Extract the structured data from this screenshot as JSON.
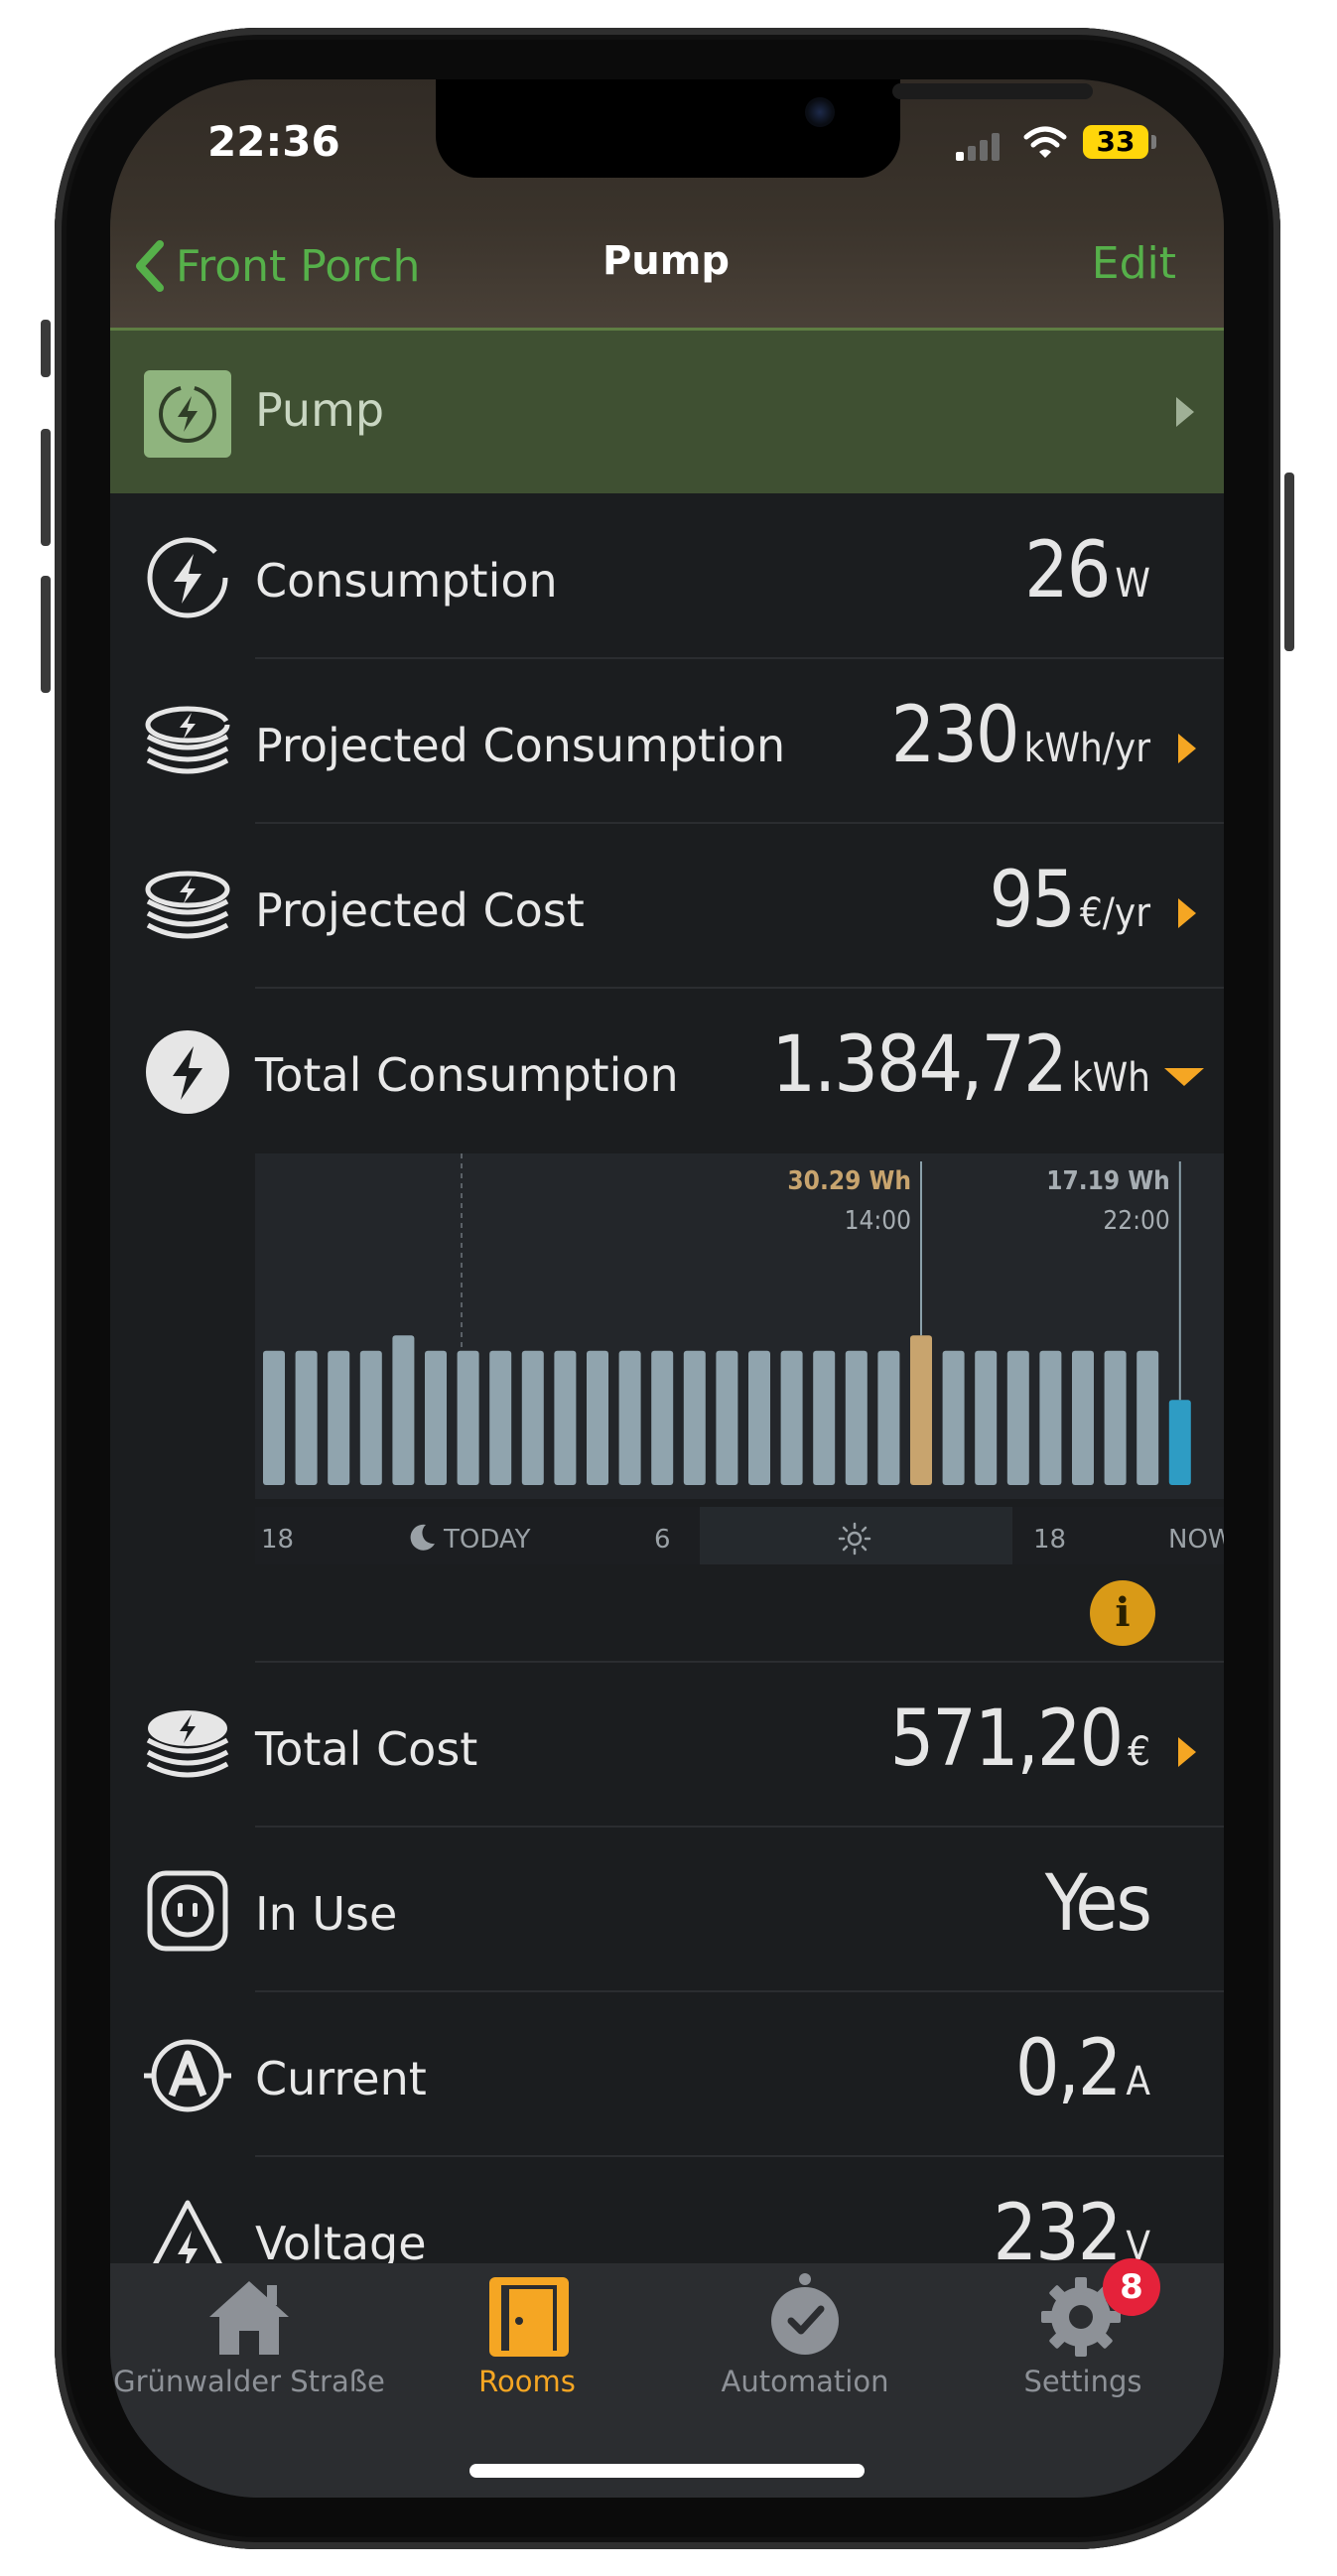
{
  "status_bar": {
    "time": "22:36",
    "battery": "33"
  },
  "nav": {
    "back_label": "Front Porch",
    "title": "Pump",
    "edit_label": "Edit"
  },
  "device": {
    "name": "Pump"
  },
  "rows": {
    "consumption": {
      "label": "Consumption",
      "value": "26",
      "unit": "W"
    },
    "projected_consumption": {
      "label": "Projected Consumption",
      "value": "230",
      "unit": "kWh/yr"
    },
    "projected_cost": {
      "label": "Projected Cost",
      "value": "95",
      "unit": "€/yr"
    },
    "total_consumption": {
      "label": "Total Consumption",
      "value": "1.384,72",
      "unit": "kWh"
    },
    "total_cost": {
      "label": "Total Cost",
      "value": "571,20",
      "unit": "€"
    },
    "in_use": {
      "label": "In Use",
      "value": "Yes"
    },
    "current": {
      "label": "Current",
      "value": "0,2",
      "unit": "A"
    },
    "voltage": {
      "label": "Voltage",
      "value": "232",
      "unit": "V"
    }
  },
  "chart_data": {
    "type": "bar",
    "values_relative": [
      0.52,
      0.52,
      0.52,
      0.52,
      0.58,
      0.52,
      0.52,
      0.52,
      0.52,
      0.52,
      0.52,
      0.52,
      0.52,
      0.52,
      0.52,
      0.52,
      0.52,
      0.52,
      0.52,
      0.52,
      0.58,
      0.52,
      0.52,
      0.52,
      0.52,
      0.52,
      0.52,
      0.52,
      0.33
    ],
    "highlight_index": 20,
    "current_index": 28,
    "selected_labels": [
      {
        "value": "30.29 Wh",
        "time": "14:00"
      },
      {
        "value": "17.19 Wh",
        "time": "22:00"
      }
    ],
    "x_labels": [
      "18",
      "TODAY",
      "6",
      "18",
      "NOW"
    ],
    "colors": {
      "bar": "#90a4ae",
      "highlight": "#c8a46e",
      "current": "#2e9cc4"
    }
  },
  "tabs": [
    {
      "label": "Grünwalder Straße",
      "icon": "home-icon",
      "active": false
    },
    {
      "label": "Rooms",
      "icon": "door-icon",
      "active": true
    },
    {
      "label": "Automation",
      "icon": "alarm-clock-icon",
      "active": false
    },
    {
      "label": "Settings",
      "icon": "gear-icon",
      "active": false,
      "badge": "8"
    }
  ],
  "colors": {
    "accent_green": "#56b04a",
    "accent_orange": "#f5a623",
    "active_tab": "#f5a623"
  }
}
